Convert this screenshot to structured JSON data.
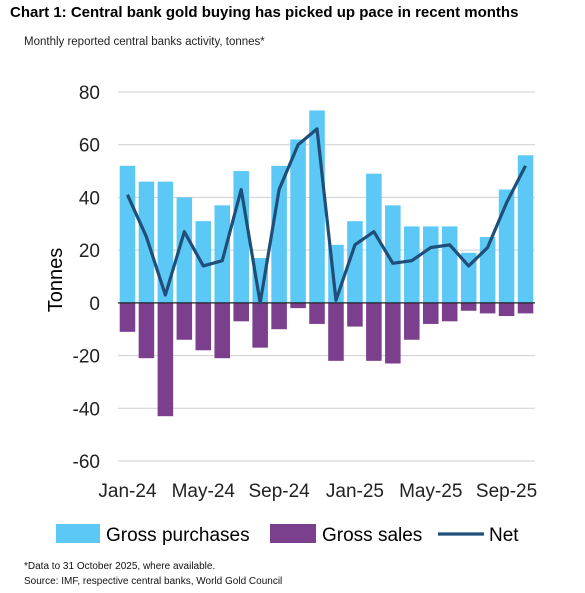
{
  "header": {
    "title": "Chart 1: Central bank gold buying has picked up pace in recent months",
    "subtitle": "Monthly reported central banks activity, tonnes*"
  },
  "footer": {
    "note": "*Data to 31 October 2025, where available.",
    "source": "Source: IMF, respective central banks, World Gold Council"
  },
  "colors": {
    "purchases": "#5bc8f5",
    "sales": "#7b3f8e",
    "net": "#1f4e79",
    "grid": "#cfcfcf",
    "zero_line": "#222222"
  },
  "chart_data": {
    "type": "bar",
    "ylabel": "Tonnes",
    "ylim": [
      -60,
      80
    ],
    "yticks": [
      80,
      60,
      40,
      20,
      0,
      -20,
      -40,
      -60
    ],
    "grid": true,
    "legend_position": "bottom",
    "categories": [
      "Jan-24",
      "Feb-24",
      "Mar-24",
      "Apr-24",
      "May-24",
      "Jun-24",
      "Jul-24",
      "Aug-24",
      "Sep-24",
      "Oct-24",
      "Nov-24",
      "Dec-24",
      "Jan-25",
      "Feb-25",
      "Mar-25",
      "Apr-25",
      "May-25",
      "Jun-25",
      "Jul-25",
      "Aug-25",
      "Sep-25",
      "Oct-25"
    ],
    "xtick_labels": [
      {
        "index": 0,
        "label": "Jan-24"
      },
      {
        "index": 4,
        "label": "May-24"
      },
      {
        "index": 8,
        "label": "Sep-24"
      },
      {
        "index": 12,
        "label": "Jan-25"
      },
      {
        "index": 16,
        "label": "May-25"
      },
      {
        "index": 20,
        "label": "Sep-25"
      }
    ],
    "series": [
      {
        "name": "Gross purchases",
        "type": "bar",
        "values": [
          52,
          46,
          46,
          40,
          31,
          37,
          50,
          17,
          52,
          62,
          73,
          22,
          31,
          49,
          37,
          29,
          29,
          29,
          19,
          25,
          43,
          56
        ]
      },
      {
        "name": "Gross sales",
        "type": "bar",
        "values": [
          -11,
          -21,
          -43,
          -14,
          -18,
          -21,
          -7,
          -17,
          -10,
          -2,
          -8,
          -22,
          -9,
          -22,
          -23,
          -14,
          -8,
          -7,
          -3,
          -4,
          -5,
          -4
        ]
      },
      {
        "name": "Net",
        "type": "line",
        "values": [
          41,
          25,
          3,
          27,
          14,
          16,
          43,
          0,
          43,
          60,
          66,
          1,
          22,
          27,
          15,
          16,
          21,
          22,
          14,
          21,
          38,
          52
        ]
      }
    ]
  }
}
